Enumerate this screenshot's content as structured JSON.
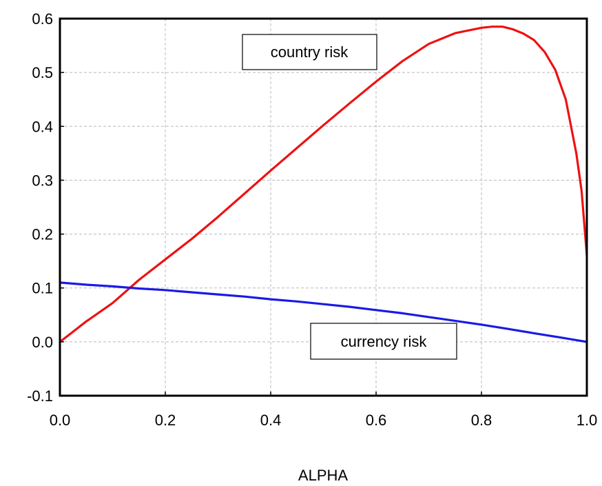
{
  "chart_data": {
    "type": "line",
    "title": "",
    "xlabel": "ALPHA",
    "ylabel": "",
    "xlim": [
      0.0,
      1.0
    ],
    "ylim": [
      -0.1,
      0.6
    ],
    "x_ticks": [
      0.0,
      0.2,
      0.4,
      0.6,
      0.8,
      1.0
    ],
    "x_tick_labels": [
      "0.0",
      "0.2",
      "0.4",
      "0.6",
      "0.8",
      "1.0"
    ],
    "y_ticks": [
      -0.1,
      0.0,
      0.1,
      0.2,
      0.3,
      0.4,
      0.5,
      0.6
    ],
    "y_tick_labels": [
      "-0.1",
      "0.0",
      "0.1",
      "0.2",
      "0.3",
      "0.4",
      "0.5",
      "0.6"
    ],
    "grid": true,
    "legend": "none",
    "series": [
      {
        "label_text": "country risk",
        "color": "#ee1111",
        "x": [
          0.0,
          0.02,
          0.05,
          0.1,
          0.15,
          0.2,
          0.25,
          0.3,
          0.35,
          0.4,
          0.45,
          0.5,
          0.55,
          0.6,
          0.65,
          0.7,
          0.75,
          0.8,
          0.82,
          0.84,
          0.86,
          0.88,
          0.9,
          0.92,
          0.94,
          0.96,
          0.98,
          0.99,
          1.0
        ],
        "y": [
          0.0,
          0.015,
          0.038,
          0.072,
          0.115,
          0.153,
          0.191,
          0.232,
          0.275,
          0.318,
          0.36,
          0.402,
          0.443,
          0.483,
          0.521,
          0.553,
          0.573,
          0.583,
          0.585,
          0.585,
          0.58,
          0.572,
          0.56,
          0.538,
          0.505,
          0.45,
          0.35,
          0.28,
          0.16
        ]
      },
      {
        "label_text": "currency risk",
        "color": "#1a1ae6",
        "x": [
          0.0,
          0.05,
          0.1,
          0.15,
          0.2,
          0.25,
          0.3,
          0.35,
          0.4,
          0.45,
          0.5,
          0.55,
          0.6,
          0.65,
          0.7,
          0.75,
          0.8,
          0.85,
          0.9,
          0.95,
          1.0
        ],
        "y": [
          0.11,
          0.106,
          0.103,
          0.099,
          0.096,
          0.092,
          0.088,
          0.084,
          0.079,
          0.075,
          0.07,
          0.065,
          0.059,
          0.053,
          0.046,
          0.039,
          0.032,
          0.024,
          0.016,
          0.008,
          0.0
        ]
      }
    ]
  }
}
